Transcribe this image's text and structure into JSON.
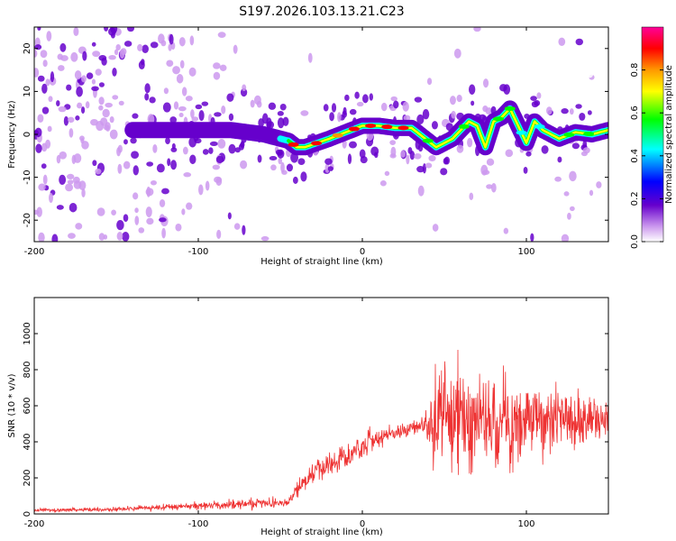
{
  "title": "S197.2026.103.13.21.C23",
  "chart_data": [
    {
      "type": "heatmap",
      "title": "S197.2026.103.13.21.C23",
      "xlabel": "Height of straight line (km)",
      "ylabel": "Frequency (Hz)",
      "xlim": [
        -200,
        150
      ],
      "ylim": [
        -25,
        25
      ],
      "xticks": [
        -200,
        -100,
        0,
        100
      ],
      "yticks": [
        -20,
        -10,
        0,
        10,
        20
      ],
      "colorbar": {
        "label": "Normalized spectral amplitude",
        "range": [
          0,
          1
        ],
        "ticks": [
          0.0,
          0.2,
          0.4,
          0.6,
          0.8
        ],
        "tick_labels": [
          "0.0",
          "0.2",
          "0.4",
          "0.6",
          "0.8"
        ],
        "colors": [
          "#ffffff",
          "#cc99ee",
          "#6600cc",
          "#0000ff",
          "#00ffff",
          "#00ff00",
          "#ffff00",
          "#ff9900",
          "#ff0000",
          "#ff0099"
        ]
      },
      "ridge": {
        "description": "Dominant frequency track",
        "x": [
          -100,
          -80,
          -60,
          -45,
          -40,
          -35,
          -20,
          -10,
          0,
          10,
          20,
          30,
          35,
          45,
          55,
          60,
          65,
          70,
          75,
          80,
          85,
          90,
          95,
          100,
          105,
          110,
          120,
          130,
          140,
          150
        ],
        "y": [
          1,
          1,
          0,
          -1.5,
          -3,
          -3,
          -1,
          0.5,
          2,
          2,
          1.5,
          1.5,
          0,
          -3,
          -1,
          1,
          3,
          2,
          -3,
          3,
          4,
          6,
          2,
          -2,
          3,
          1,
          -1,
          0.5,
          0,
          1
        ]
      }
    },
    {
      "type": "line",
      "xlabel": "Height of straight line (km)",
      "ylabel": "SNR (10 * v/v)",
      "xlim": [
        -200,
        150
      ],
      "ylim": [
        0,
        1200
      ],
      "xticks": [
        -200,
        -100,
        0,
        100
      ],
      "yticks": [
        0,
        200,
        400,
        600,
        800,
        1000
      ],
      "series": [
        {
          "name": "SNR",
          "color": "#ee3333",
          "envelope": {
            "x": [
              -200,
              -150,
              -100,
              -60,
              -45,
              -40,
              -30,
              -20,
              -10,
              0,
              10,
              20,
              30,
              38,
              42,
              50,
              60,
              70,
              80,
              90,
              100,
              110,
              120,
              130,
              140,
              150
            ],
            "mean": [
              20,
              25,
              45,
              60,
              60,
              140,
              230,
              280,
              320,
              370,
              420,
              450,
              480,
              490,
              500,
              520,
              520,
              530,
              520,
              520,
              510,
              520,
              520,
              520,
              530,
              540
            ],
            "spread": [
              12,
              15,
              25,
              40,
              20,
              50,
              70,
              80,
              80,
              80,
              70,
              60,
              50,
              60,
              300,
              350,
              400,
              350,
              300,
              300,
              250,
              220,
              200,
              200,
              180,
              180
            ]
          }
        }
      ]
    }
  ]
}
